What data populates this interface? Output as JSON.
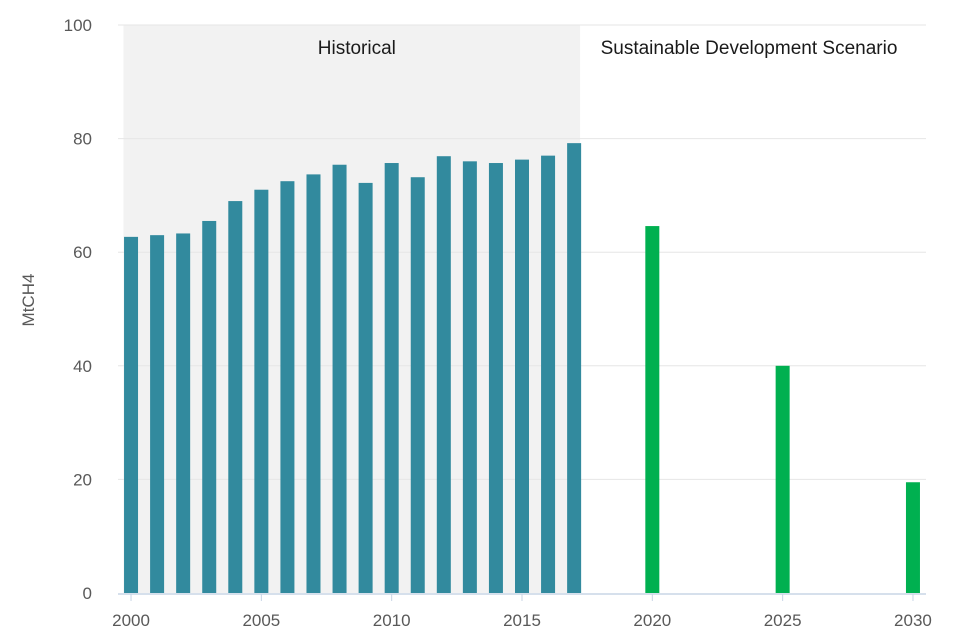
{
  "chart_data": {
    "type": "bar",
    "title": "",
    "xlabel": "",
    "ylabel": "MtCH4",
    "ylim": [
      0,
      100
    ],
    "yticks": [
      0,
      20,
      40,
      60,
      80,
      100
    ],
    "xlim": [
      1999.5,
      2030.5
    ],
    "xticks": [
      2000,
      2005,
      2010,
      2015,
      2020,
      2025,
      2030
    ],
    "grid": true,
    "regions": [
      {
        "name": "historical",
        "label": "Historical",
        "from": 2000,
        "to": 2017,
        "shaded": true
      },
      {
        "name": "sds",
        "label": "Sustainable Development Scenario",
        "from": 2017,
        "to": 2030,
        "shaded": false
      }
    ],
    "series": [
      {
        "name": "Historical",
        "color": "#328a9e",
        "x": [
          2000,
          2001,
          2002,
          2003,
          2004,
          2005,
          2006,
          2007,
          2008,
          2009,
          2010,
          2011,
          2012,
          2013,
          2014,
          2015,
          2016,
          2017
        ],
        "values": [
          62.7,
          63.0,
          63.3,
          65.5,
          69.0,
          71.0,
          72.5,
          73.7,
          75.4,
          72.2,
          75.7,
          73.2,
          76.9,
          76.0,
          75.7,
          76.3,
          77.0,
          79.2
        ]
      },
      {
        "name": "Sustainable Development Scenario",
        "color": "#00b050",
        "x": [
          2020,
          2025,
          2030
        ],
        "values": [
          64.6,
          40.0,
          19.5
        ]
      }
    ]
  }
}
